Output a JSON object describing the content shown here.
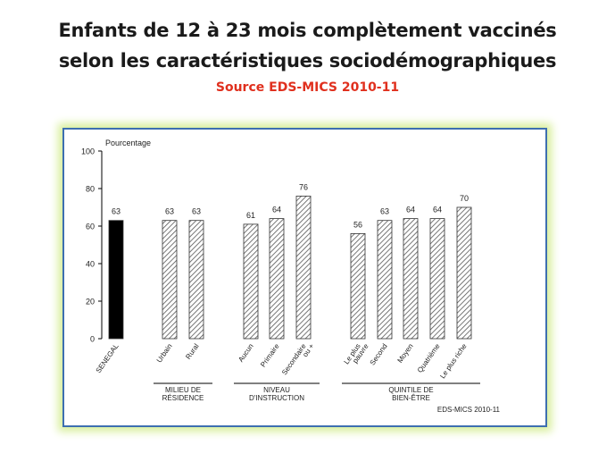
{
  "slide": {
    "title_line1": "Enfants de 12 à 23 mois complètement vaccinés",
    "title_line2": "selon les caractéristiques sociodémographiques",
    "source": "Source EDS-MICS  2010-11"
  },
  "colors": {
    "title": "#1a1a1a",
    "source": "#e0301e",
    "panel_border": "#3d6fb0",
    "panel_glow": "#d8ef9c",
    "national_bar": "#000000",
    "hatched_bar": "#555555"
  },
  "chart_data": {
    "type": "bar",
    "ylabel": "Pourcentage",
    "ylim": [
      0,
      100
    ],
    "yticks": [
      0,
      20,
      40,
      60,
      80,
      100
    ],
    "grid": false,
    "footer_note": "EDS-MICS 2010-11",
    "bars": [
      {
        "label": "SENEGAL",
        "value": 63,
        "style": "solid",
        "group": 0
      },
      {
        "label": "Urbain",
        "value": 63,
        "style": "hatched",
        "group": 1
      },
      {
        "label": "Rural",
        "value": 63,
        "style": "hatched",
        "group": 1
      },
      {
        "label": "Aucun",
        "value": 61,
        "style": "hatched",
        "group": 2
      },
      {
        "label": "Primaire",
        "value": 64,
        "style": "hatched",
        "group": 2
      },
      {
        "label": "Secondaire ou +",
        "value": 76,
        "style": "hatched",
        "group": 2
      },
      {
        "label": "Le plus pauvre",
        "value": 56,
        "style": "hatched",
        "group": 3
      },
      {
        "label": "Second",
        "value": 63,
        "style": "hatched",
        "group": 3
      },
      {
        "label": "Moyen",
        "value": 64,
        "style": "hatched",
        "group": 3
      },
      {
        "label": "Quatrième",
        "value": 64,
        "style": "hatched",
        "group": 3
      },
      {
        "label": "Le plus riche",
        "value": 70,
        "style": "hatched",
        "group": 3
      }
    ],
    "groups": [
      {
        "label_line1": "",
        "label_line2": ""
      },
      {
        "label_line1": "MILIEU DE",
        "label_line2": "RÉSIDENCE"
      },
      {
        "label_line1": "NIVEAU",
        "label_line2": "D'INSTRUCTION"
      },
      {
        "label_line1": "QUINTILE DE",
        "label_line2": "BIEN-ÊTRE"
      }
    ]
  }
}
